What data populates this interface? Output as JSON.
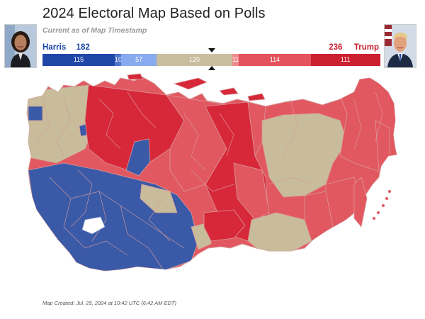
{
  "header": {
    "title": "2024 Electoral Map Based on Polls",
    "subtitle": "Current as of Map Timestamp"
  },
  "candidates": {
    "left": {
      "name": "Harris",
      "votes": "182",
      "color": "#1a44a6"
    },
    "right": {
      "votes": "236",
      "name": "Trump",
      "color": "#c8202f"
    }
  },
  "electoral_bar": {
    "segments": [
      {
        "label": "115",
        "value": 115,
        "color": "#2046a8",
        "category": "solid-dem"
      },
      {
        "label": "10",
        "value": 10,
        "color": "#4f74c9",
        "category": "likely-dem"
      },
      {
        "label": "57",
        "value": 57,
        "color": "#88aaee",
        "category": "lean-dem"
      },
      {
        "label": "120",
        "value": 120,
        "color": "#c8bd9c",
        "category": "toss-up"
      },
      {
        "label": "11",
        "value": 11,
        "color": "#ef8a8a",
        "category": "tilt-rep"
      },
      {
        "label": "114",
        "value": 114,
        "color": "#e4525e",
        "category": "likely-rep"
      },
      {
        "label": "111",
        "value": 111,
        "color": "#cc1f30",
        "category": "solid-rep"
      }
    ],
    "midpoint_value": 269
  },
  "map": {
    "colors": {
      "solid_dem": "#3a5aa8",
      "toss_up": "#c8bc9a",
      "solid_rep": "#d7283a",
      "likely_rep": "#e25860",
      "white": "#ffffff"
    }
  },
  "footer": {
    "text": "Map Created: Jul. 25, 2024 at 10:42 UTC (6:42 AM EDT)"
  }
}
